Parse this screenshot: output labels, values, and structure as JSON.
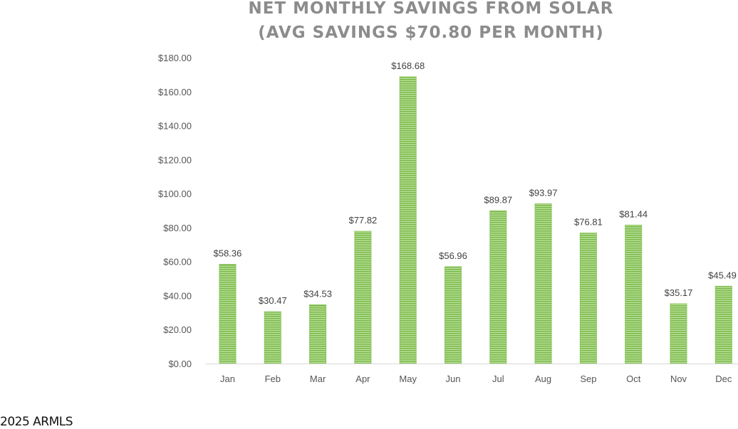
{
  "chart_data": {
    "type": "bar",
    "title": [
      "NET MONTHLY SAVINGS FROM SOLAR",
      "(AVG SAVINGS $70.80 PER MONTH)"
    ],
    "categories": [
      "Jan",
      "Feb",
      "Mar",
      "Apr",
      "May",
      "Jun",
      "Jul",
      "Aug",
      "Sep",
      "Oct",
      "Nov",
      "Dec"
    ],
    "values": [
      58.36,
      30.47,
      34.53,
      77.82,
      168.68,
      56.96,
      89.87,
      93.97,
      76.81,
      81.44,
      35.17,
      45.49
    ],
    "data_labels": [
      "$58.36",
      "$30.47",
      "$34.53",
      "$77.82",
      "$168.68",
      "$56.96",
      "$89.87",
      "$93.97",
      "$76.81",
      "$81.44",
      "$35.17",
      "$45.49"
    ],
    "y_ticks": [
      "$0.00",
      "$20.00",
      "$40.00",
      "$60.00",
      "$80.00",
      "$100.00",
      "$120.00",
      "$140.00",
      "$160.00",
      "$180.00"
    ],
    "ylim": [
      0,
      180
    ],
    "grid": false,
    "legend": "none",
    "bar_color": "#8cc45d"
  },
  "footer": "2025 ARMLS"
}
